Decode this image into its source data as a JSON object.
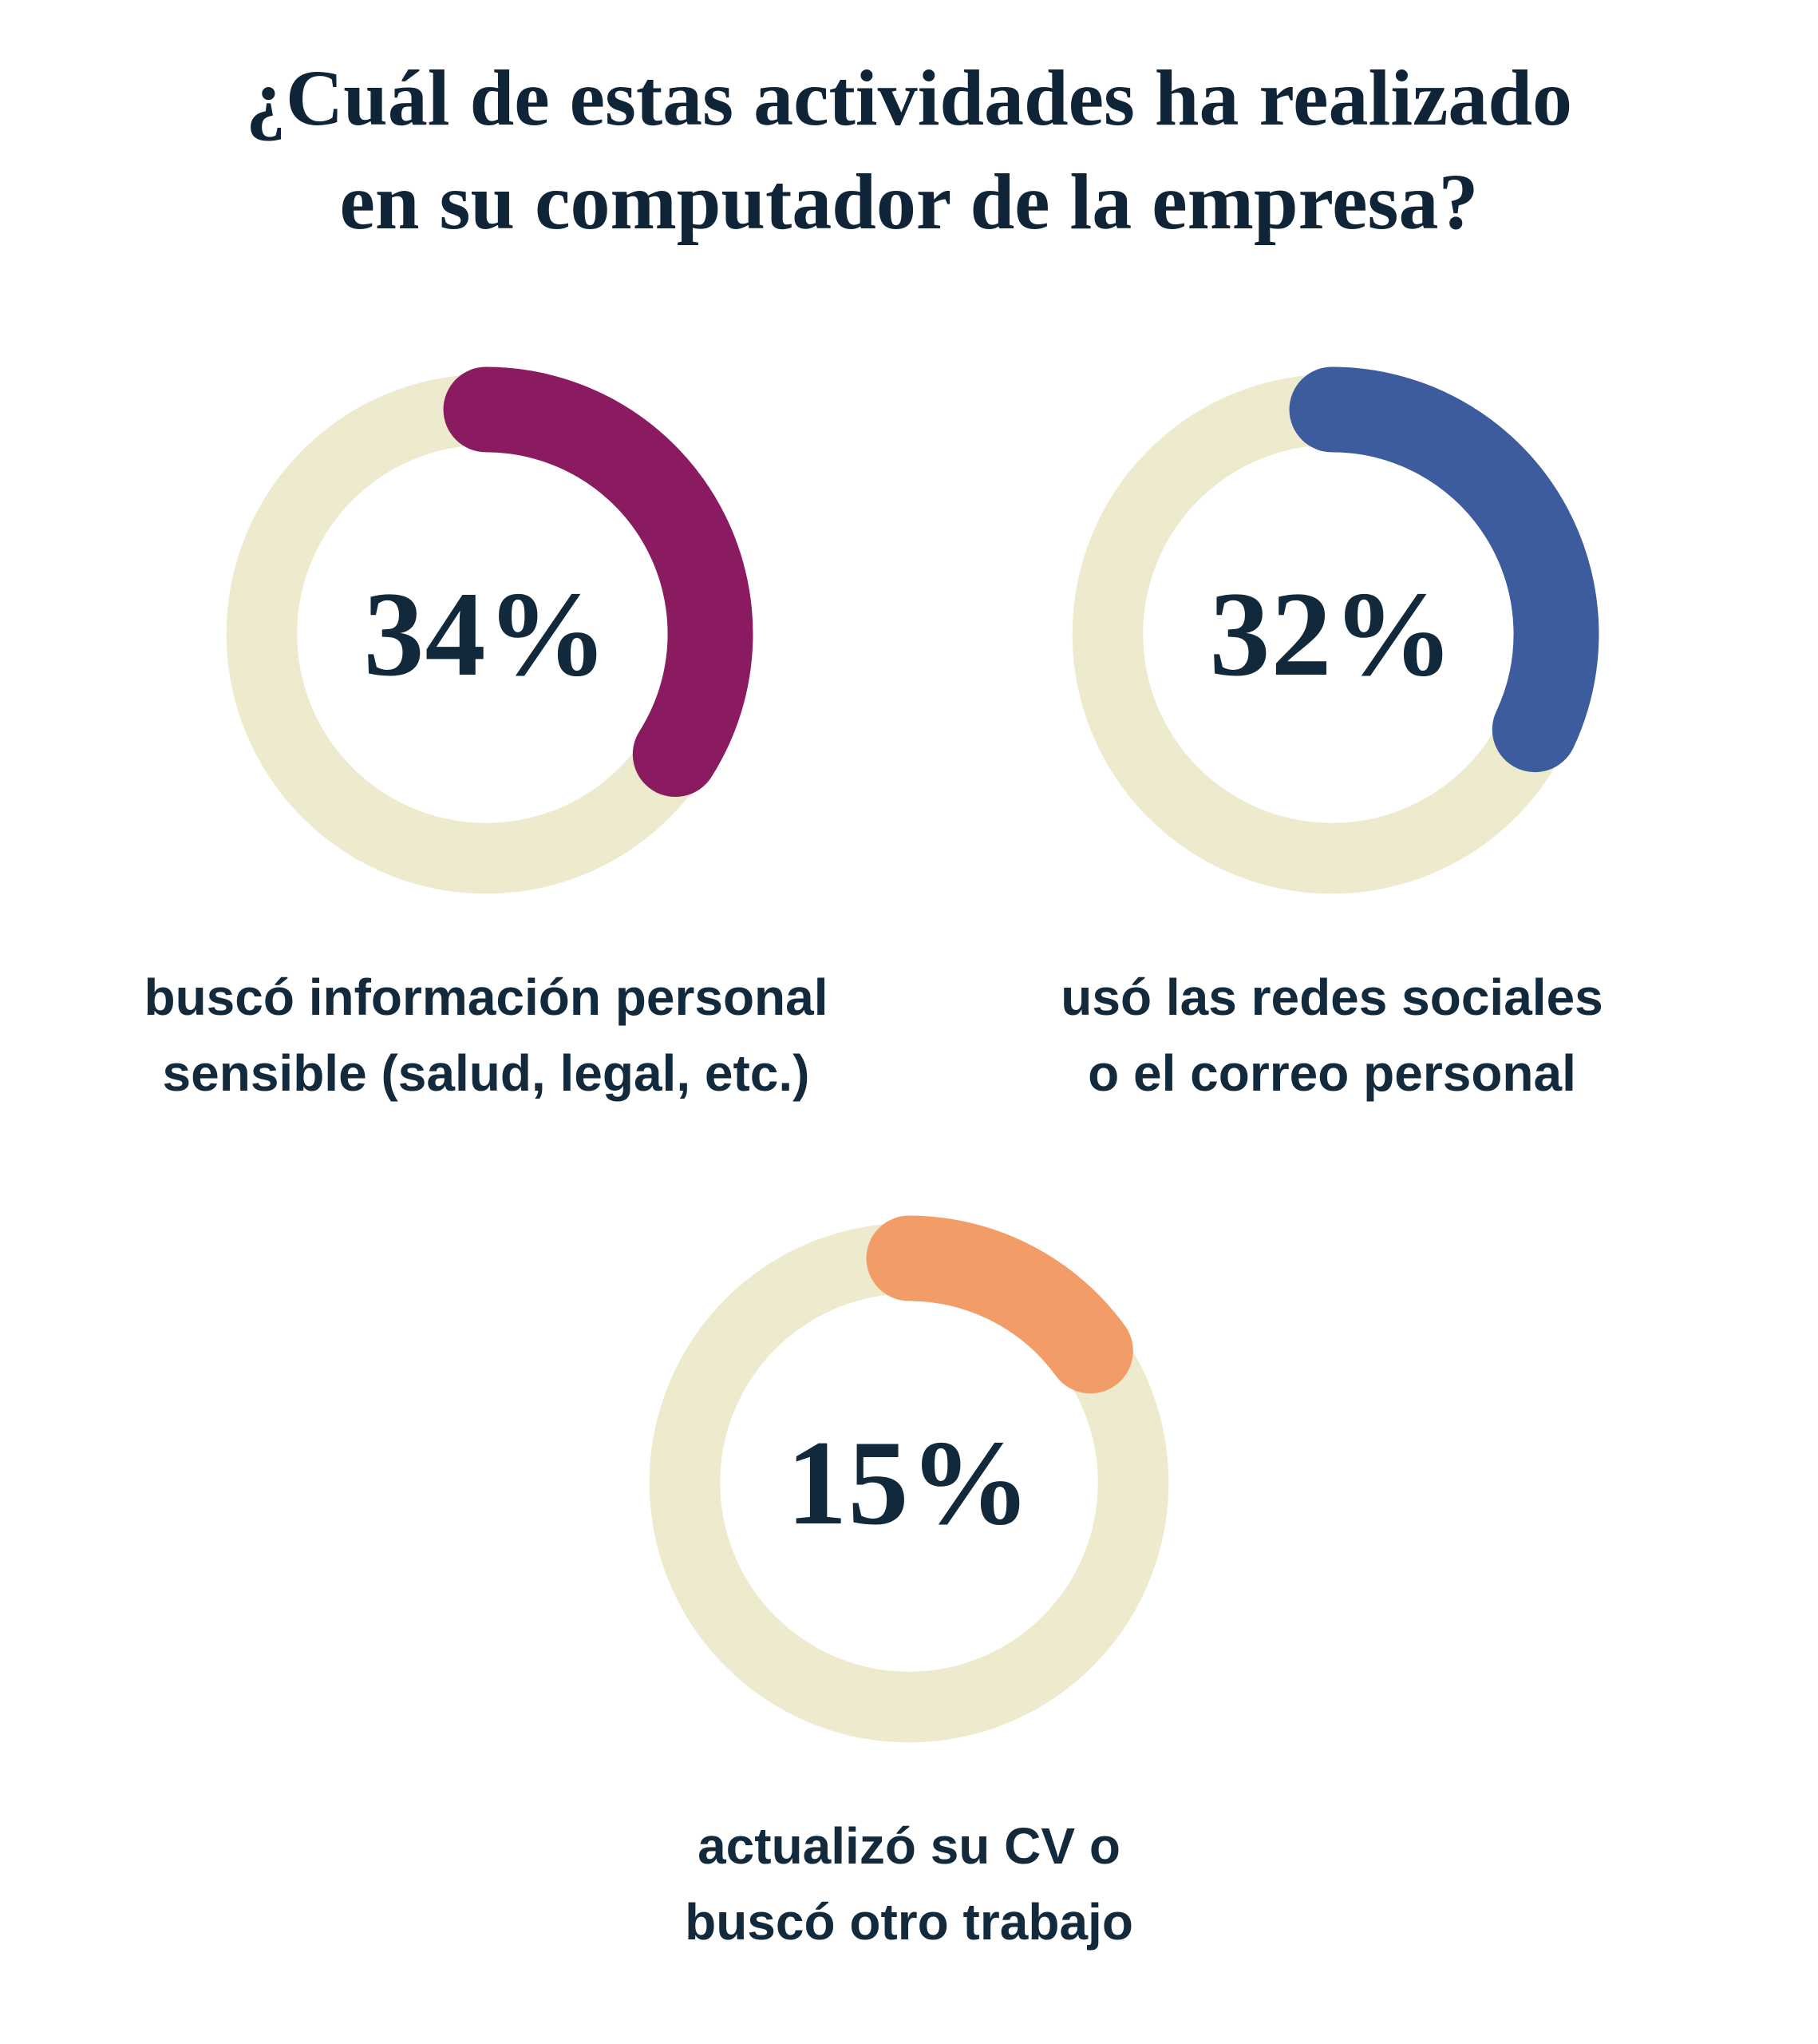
{
  "title": {
    "line1": "¿Cuál de estas actividades ha realizado",
    "line2": "en su computador de la empresa?",
    "full": "¿Cuál de estas actividades ha realizado en su computador de la empresa?"
  },
  "colors": {
    "background": "#FFFFFF",
    "title_text": "#0F2537",
    "body_text": "#132A3C",
    "donut_track": "#EEEACD"
  },
  "chart_data": {
    "type": "donut",
    "title": "¿Cuál de estas actividades ha realizado en su computador de la empresa?",
    "unit": "%",
    "arc_start": "top",
    "arc_direction": "clockwise",
    "arc_linecap": "round",
    "track_color": "#EEEACD",
    "value_range": [
      0,
      100
    ],
    "charts": [
      {
        "value": 34,
        "value_label": "34%",
        "color": "#8B1B61",
        "label_lines": [
          "buscó información personal",
          "sensible (salud, legal, etc.)"
        ]
      },
      {
        "value": 32,
        "value_label": "32%",
        "color": "#3D5C9D",
        "label_lines": [
          "usó las redes sociales",
          "o el correo personal"
        ]
      },
      {
        "value": 15,
        "value_label": "15%",
        "color": "#F29C68",
        "label_lines": [
          "actualizó su CV o",
          "buscó otro trabajo"
        ]
      }
    ]
  }
}
